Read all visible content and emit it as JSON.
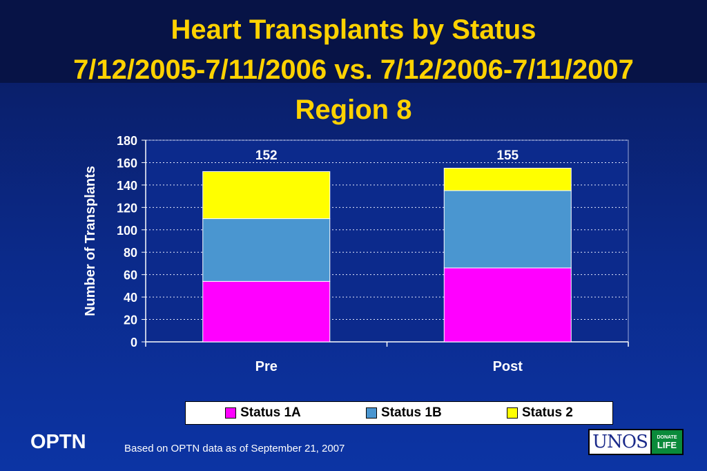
{
  "title": {
    "line1": "Heart Transplants by Status",
    "line2": "7/12/2005-7/11/2006 vs. 7/12/2006-7/11/2007",
    "line3": "Region 8"
  },
  "colors": {
    "title": "#ffd200",
    "status_1a": "#ff00ff",
    "status_1b": "#4a96d0",
    "status_2": "#ffff00",
    "plot_bg": "#0c2a8c"
  },
  "chart_data": {
    "type": "bar",
    "stacked": true,
    "categories": [
      "Pre",
      "Post"
    ],
    "series": [
      {
        "name": "Status 1A",
        "values": [
          54,
          66
        ]
      },
      {
        "name": "Status 1B",
        "values": [
          56,
          69
        ]
      },
      {
        "name": "Status 2",
        "values": [
          42,
          20
        ]
      }
    ],
    "totals": [
      152,
      155
    ],
    "title": "Heart Transplants by Status",
    "xlabel": "",
    "ylabel": "Number of Transplants",
    "ylim": [
      0,
      180
    ],
    "yticks": [
      0,
      20,
      40,
      60,
      80,
      100,
      120,
      140,
      160,
      180
    ],
    "grid": true,
    "legend_position": "bottom"
  },
  "legend": [
    "Status 1A",
    "Status 1B",
    "Status 2"
  ],
  "footer": {
    "brand": "OPTN",
    "note": "Based on OPTN data as of  September  21, 2007",
    "logo_text": "UNOS",
    "logo_badge_top": "DONATE",
    "logo_badge_bottom": "LIFE"
  }
}
